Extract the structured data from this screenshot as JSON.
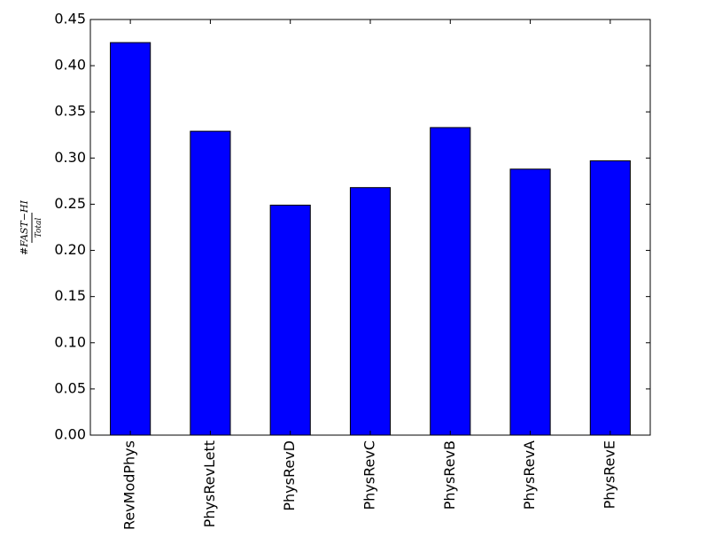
{
  "chart_data": {
    "type": "bar",
    "ylabel": {
      "numerator": "#FAST−HI",
      "denominator": "Total"
    },
    "categories": [
      "RevModPhys",
      "PhysRevLett",
      "PhysRevD",
      "PhysRevC",
      "PhysRevB",
      "PhysRevA",
      "PhysRevE"
    ],
    "values": [
      0.425,
      0.329,
      0.249,
      0.268,
      0.333,
      0.288,
      0.297
    ],
    "color": "#0000ff",
    "ylim": [
      0,
      0.45
    ],
    "yticks": [
      {
        "value": 0,
        "label": "0.00"
      },
      {
        "value": 0.05,
        "label": "0.05"
      },
      {
        "value": 0.1,
        "label": "0.10"
      },
      {
        "value": 0.15,
        "label": "0.15"
      },
      {
        "value": 0.2,
        "label": "0.20"
      },
      {
        "value": 0.25,
        "label": "0.25"
      },
      {
        "value": 0.3,
        "label": "0.30"
      },
      {
        "value": 0.35,
        "label": "0.35"
      },
      {
        "value": 0.4,
        "label": "0.40"
      },
      {
        "value": 0.45,
        "label": "0.45"
      }
    ],
    "grid": false
  }
}
